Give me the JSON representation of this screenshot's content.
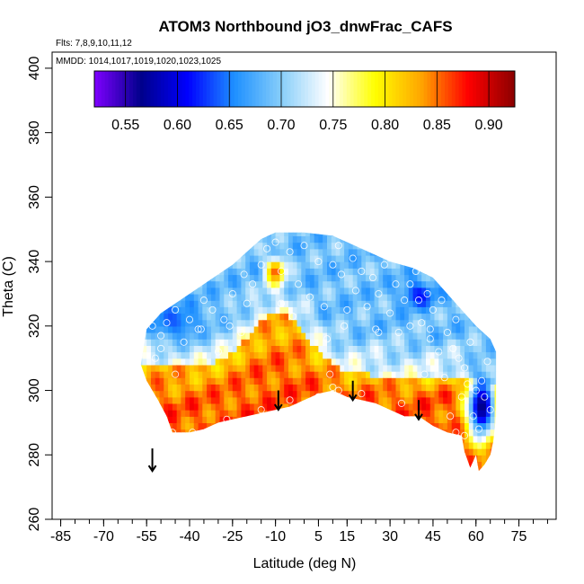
{
  "chart_data": {
    "type": "heatmap",
    "title": "ATOM3 Northbound jO3_dnwFrac_CAFS",
    "flights_label": "Flts: 7,8,9,10,11,12",
    "mmdd_label": "MMDD: 1014,1017,1019,1020,1023,1025",
    "xlabel": "Latitude (deg N)",
    "ylabel": "Theta (C)",
    "xlim": [
      -88,
      88
    ],
    "ylim": [
      260,
      405
    ],
    "x_ticks": [
      -85,
      -70,
      -55,
      -40,
      -25,
      -10,
      5,
      15,
      30,
      45,
      60,
      75
    ],
    "x_minor_step": 5,
    "y_ticks": [
      260,
      280,
      300,
      320,
      340,
      360,
      380,
      400
    ],
    "colorbar": {
      "min": 0.52,
      "max": 0.925,
      "ticks": [
        0.55,
        0.6,
        0.65,
        0.7,
        0.75,
        0.8,
        0.85,
        0.9
      ],
      "tick_labels": [
        "0.55",
        "0.60",
        "0.65",
        "0.70",
        "0.75",
        "0.80",
        "0.85",
        "0.90"
      ],
      "colors": [
        "#7f00ff",
        "#00008b",
        "#0000ff",
        "#1e90ff",
        "#87cefa",
        "#ffffff",
        "#ffff00",
        "#ffa500",
        "#ff0000",
        "#8b0000"
      ]
    },
    "domain_outline": [
      [
        -57,
        308
      ],
      [
        -55,
        319
      ],
      [
        -50,
        324
      ],
      [
        -45,
        327
      ],
      [
        -40,
        330
      ],
      [
        -35,
        333
      ],
      [
        -30,
        336
      ],
      [
        -25,
        339
      ],
      [
        -20,
        343
      ],
      [
        -15,
        347
      ],
      [
        -10,
        349
      ],
      [
        0,
        349
      ],
      [
        10,
        348
      ],
      [
        20,
        344
      ],
      [
        30,
        340
      ],
      [
        38,
        338
      ],
      [
        45,
        335
      ],
      [
        50,
        330
      ],
      [
        55,
        325
      ],
      [
        60,
        320
      ],
      [
        65,
        316
      ],
      [
        67,
        312
      ],
      [
        67,
        300
      ],
      [
        67,
        292
      ],
      [
        66,
        284
      ],
      [
        65,
        280
      ],
      [
        63,
        277
      ],
      [
        61,
        275
      ],
      [
        60,
        280
      ],
      [
        58,
        276
      ],
      [
        56,
        281
      ],
      [
        55,
        286
      ],
      [
        50,
        287
      ],
      [
        45,
        289
      ],
      [
        40,
        292
      ],
      [
        35,
        292
      ],
      [
        30,
        294
      ],
      [
        25,
        296
      ],
      [
        20,
        297
      ],
      [
        15,
        298
      ],
      [
        10,
        300
      ],
      [
        5,
        299
      ],
      [
        0,
        297
      ],
      [
        -5,
        295
      ],
      [
        -10,
        294
      ],
      [
        -15,
        293
      ],
      [
        -20,
        292
      ],
      [
        -25,
        291
      ],
      [
        -30,
        290
      ],
      [
        -35,
        288
      ],
      [
        -40,
        287
      ],
      [
        -46,
        287
      ],
      [
        -48,
        292
      ],
      [
        -51,
        297
      ],
      [
        -53,
        300
      ],
      [
        -55,
        303
      ]
    ],
    "surface": {
      "low_base": 0.855,
      "top_value": 0.69,
      "layer_base": 306,
      "layer_slope": -0.05,
      "bump": {
        "lat": -9,
        "height": 18,
        "half_width": 14
      },
      "anomaly": {
        "lat": -10,
        "theta": 337,
        "value": 0.86
      },
      "north_low": {
        "lat": 62,
        "theta": 295,
        "value": 0.56
      },
      "southwest_low": {
        "lat": -45,
        "theta": 321,
        "value": 0.62
      }
    },
    "arrows": [
      {
        "lat": -53,
        "theta_top": 282,
        "theta_bottom": 275
      },
      {
        "lat": -9,
        "theta_top": 300,
        "theta_bottom": 294
      },
      {
        "lat": 17,
        "theta_top": 303,
        "theta_bottom": 297
      },
      {
        "lat": 40,
        "theta_top": 297,
        "theta_bottom": 291
      }
    ],
    "observations": [
      [
        -53,
        320
      ],
      [
        -50,
        317
      ],
      [
        -48,
        321
      ],
      [
        -45,
        325
      ],
      [
        -42,
        315
      ],
      [
        -40,
        322
      ],
      [
        -37,
        319
      ],
      [
        -35,
        328
      ],
      [
        -32,
        325
      ],
      [
        -30,
        312
      ],
      [
        -28,
        322
      ],
      [
        -25,
        330
      ],
      [
        -22,
        318
      ],
      [
        -20,
        327
      ],
      [
        -18,
        333
      ],
      [
        -15,
        339
      ],
      [
        -13,
        344
      ],
      [
        -10,
        346
      ],
      [
        -8,
        337
      ],
      [
        -5,
        343
      ],
      [
        -4,
        323
      ],
      [
        -2,
        333
      ],
      [
        0,
        345
      ],
      [
        2,
        329
      ],
      [
        5,
        340
      ],
      [
        7,
        326
      ],
      [
        10,
        339
      ],
      [
        12,
        345
      ],
      [
        13,
        336
      ],
      [
        15,
        325
      ],
      [
        17,
        341
      ],
      [
        18,
        331
      ],
      [
        20,
        337
      ],
      [
        22,
        326
      ],
      [
        24,
        335
      ],
      [
        25,
        319
      ],
      [
        26,
        330
      ],
      [
        28,
        339
      ],
      [
        30,
        324
      ],
      [
        32,
        333
      ],
      [
        33,
        318
      ],
      [
        35,
        328
      ],
      [
        37,
        320
      ],
      [
        39,
        337
      ],
      [
        40,
        328
      ],
      [
        41,
        321
      ],
      [
        43,
        330
      ],
      [
        44,
        316
      ],
      [
        45,
        325
      ],
      [
        47,
        312
      ],
      [
        48,
        328
      ],
      [
        49,
        304
      ],
      [
        50,
        318
      ],
      [
        52,
        313
      ],
      [
        53,
        322
      ],
      [
        54,
        310
      ],
      [
        55,
        298
      ],
      [
        56,
        307
      ],
      [
        57,
        302
      ],
      [
        58,
        315
      ],
      [
        59,
        292
      ],
      [
        60,
        300
      ],
      [
        61,
        288
      ],
      [
        62,
        303
      ],
      [
        63,
        298
      ],
      [
        64,
        309
      ],
      [
        65,
        294
      ],
      [
        51,
        292
      ],
      [
        53,
        287
      ],
      [
        56,
        286
      ],
      [
        48,
        286
      ],
      [
        -46,
        287
      ],
      [
        -39,
        287
      ],
      [
        -27,
        291
      ],
      [
        5,
        298
      ],
      [
        10,
        301
      ],
      [
        12,
        300
      ],
      [
        20,
        299
      ],
      [
        34,
        296
      ],
      [
        -5,
        297
      ],
      [
        -15,
        294
      ],
      [
        9,
        305
      ],
      [
        -45,
        305
      ],
      [
        -52,
        310
      ],
      [
        -50,
        313
      ],
      [
        44,
        319
      ],
      [
        37,
        333
      ],
      [
        -26,
        320
      ],
      [
        8,
        316
      ],
      [
        -8,
        327
      ],
      [
        26,
        318
      ],
      [
        -36,
        319
      ],
      [
        42,
        305
      ],
      [
        14,
        320
      ],
      [
        -21,
        336
      ]
    ]
  }
}
